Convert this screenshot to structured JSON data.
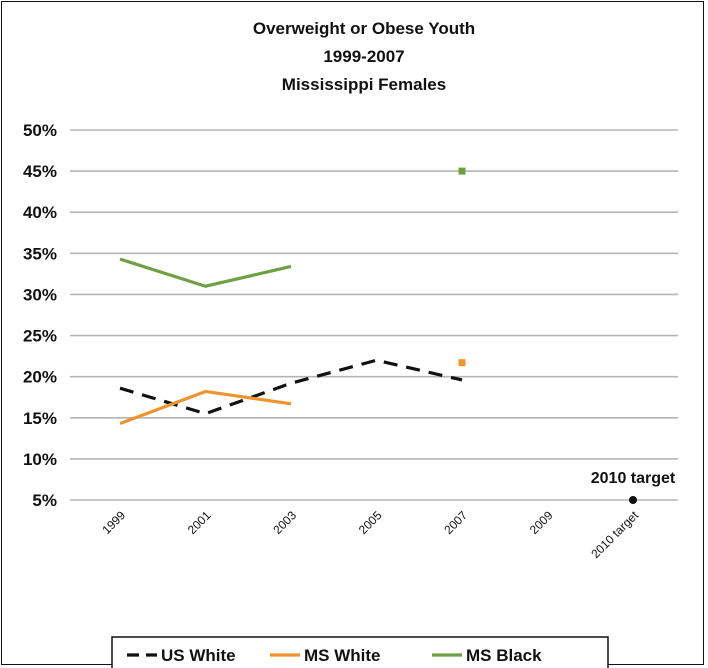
{
  "chart_data": {
    "type": "line",
    "title_lines": [
      "Overweight or Obese Youth",
      "1999-2007",
      "Mississippi Females"
    ],
    "categories": [
      "1999",
      "2001",
      "2003",
      "2005",
      "2007",
      "2009",
      "2010 target"
    ],
    "ytick_labels": [
      "5%",
      "10%",
      "15%",
      "20%",
      "25%",
      "30%",
      "35%",
      "40%",
      "45%",
      "50%"
    ],
    "ylim": [
      5,
      50
    ],
    "grid": true,
    "legend_position": "bottom",
    "series": [
      {
        "name": "US White",
        "color": "#111111",
        "dash": true,
        "values": [
          18.6,
          15.5,
          19.2,
          22.0,
          19.6,
          null,
          null
        ]
      },
      {
        "name": "MS White",
        "color": "#f0932e",
        "dash": false,
        "values": [
          14.3,
          18.2,
          16.7,
          null,
          21.7,
          null,
          null
        ]
      },
      {
        "name": "MS Black",
        "color": "#70a044",
        "dash": false,
        "values": [
          34.3,
          31.0,
          33.4,
          null,
          45.0,
          null,
          null
        ]
      }
    ],
    "target": {
      "category": "2010 target",
      "value": 5,
      "label": "2010 target",
      "color": "#111111"
    }
  }
}
